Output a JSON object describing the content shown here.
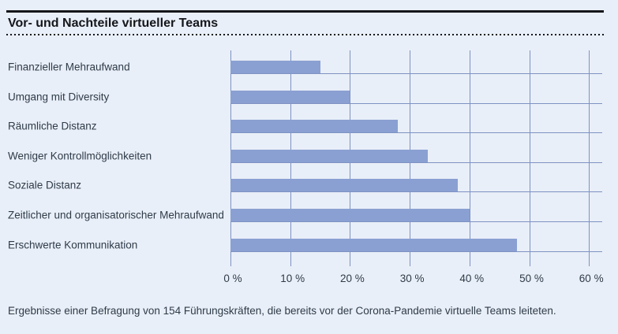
{
  "header": {
    "title": "Vor- und Nachteile virtueller Teams"
  },
  "chart_data": {
    "type": "bar",
    "orientation": "horizontal",
    "title": "Vor- und Nachteile virtueller Teams",
    "categories": [
      "Finanzieller Mehraufwand",
      "Umgang mit Diversity",
      "Räumliche Distanz",
      "Weniger Kontrollmöglichkeiten",
      "Soziale Distanz",
      "Zeitlicher und organisatorischer Mehraufwand",
      "Erschwerte Kommunikation"
    ],
    "values": [
      15,
      20,
      28,
      33,
      38,
      40,
      48
    ],
    "unit": "%",
    "xlabel": "",
    "ylabel": "",
    "xlim": [
      0,
      60
    ],
    "x_tick_step": 10,
    "x_tick_labels": [
      "0 %",
      "10 %",
      "20 %",
      "30 %",
      "40 %",
      "50 %",
      "60 %"
    ],
    "grid": true,
    "legend": false,
    "bar_color": "#8aa0d2",
    "grid_color": "#7e92c3",
    "background_color": "#e9eff8"
  },
  "footer": {
    "caption": "Ergebnisse einer Befragung von 154 Führungskräften, die bereits vor der Corona-Pandemie virtuelle Teams leiteten."
  }
}
